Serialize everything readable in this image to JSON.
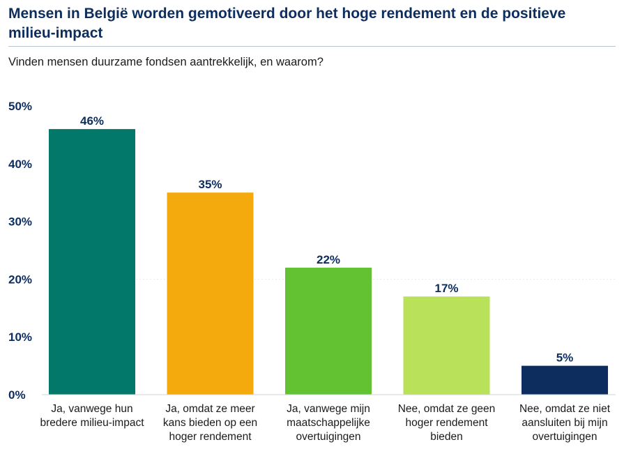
{
  "header": {
    "title": "Mensen in België worden gemotiveerd door het hoge rendement en de positieve milieu-impact",
    "subtitle": "Vinden mensen duurzame fondsen aantrekkelijk, en waarom?"
  },
  "chart_data": {
    "type": "bar",
    "title": "Mensen in België worden gemotiveerd door het hoge rendement en de positieve milieu-impact",
    "subtitle": "Vinden mensen duurzame fondsen aantrekkelijk, en waarom?",
    "categories": [
      "Ja, vanwege hun bredere milieu-impact",
      "Ja, omdat ze meer kans bieden op een hoger rendement",
      "Ja, vanwege mijn maatschappelijke overtuigingen",
      "Nee, omdat ze geen hoger rendement bieden",
      "Nee, omdat ze niet aansluiten bij mijn overtuigingen"
    ],
    "values": [
      46,
      35,
      22,
      17,
      5
    ],
    "data_labels": [
      "46%",
      "35%",
      "22%",
      "17%",
      "5%"
    ],
    "colors": [
      "#01786a",
      "#f4a90c",
      "#63c232",
      "#b9e25a",
      "#0c2d5e"
    ],
    "ylim": [
      0,
      50
    ],
    "yticks": [
      "0%",
      "10%",
      "20%",
      "30%",
      "40%",
      "50%"
    ],
    "xlabel": "",
    "ylabel": "",
    "grid": false,
    "legend": "none"
  }
}
